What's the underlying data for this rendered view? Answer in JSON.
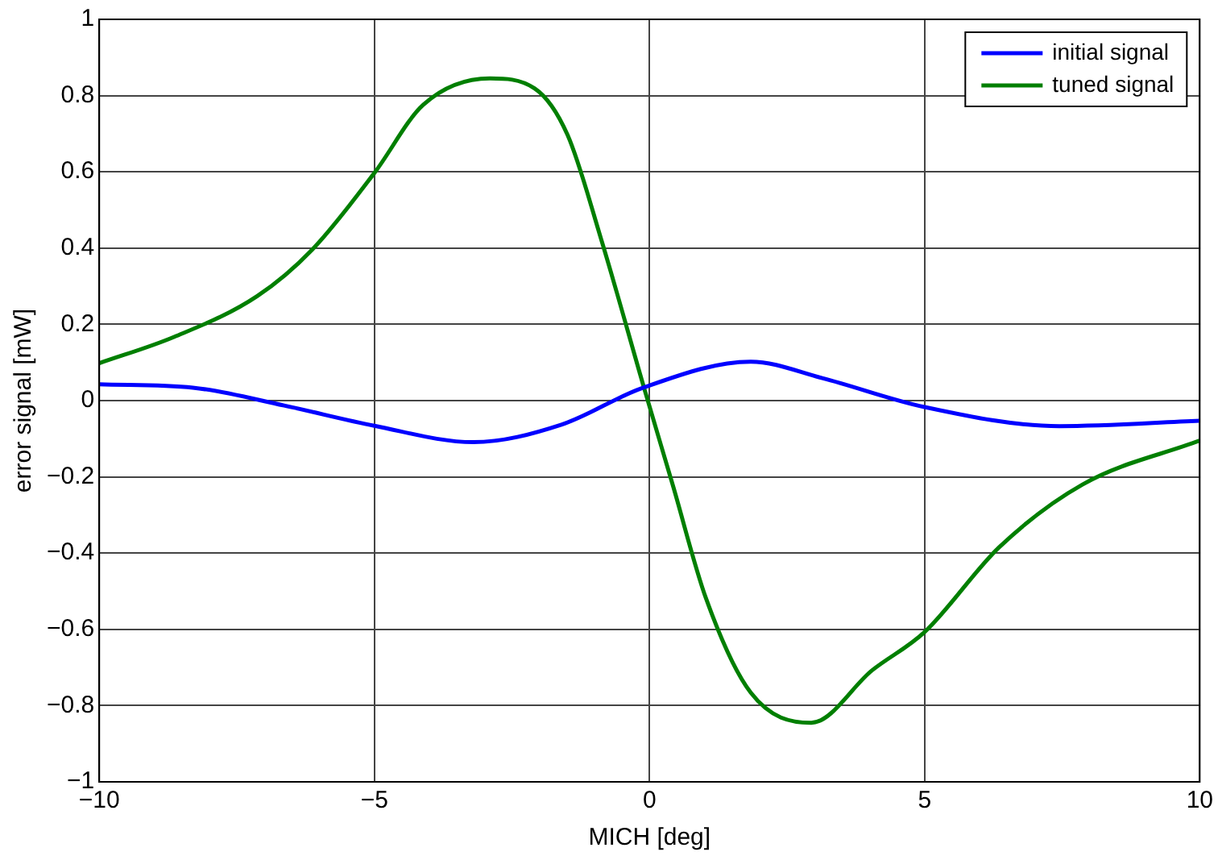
{
  "chart_data": {
    "type": "line",
    "xlabel": "MICH [deg]",
    "ylabel": "error signal [mW]",
    "xlim": [
      -10,
      10
    ],
    "xticks": [
      -10,
      -5,
      0,
      5,
      10
    ],
    "ylim": [
      -1,
      1
    ],
    "yticks": [
      -1,
      -0.8,
      -0.6,
      -0.4,
      -0.2,
      0,
      0.2,
      0.4,
      0.6,
      0.8,
      1
    ],
    "grid": true,
    "legend": "top right",
    "marker": "none",
    "line_style": "solid",
    "series": [
      {
        "name": "initial signal",
        "color": "#0000ff",
        "x": [
          -10,
          -8.3,
          -6.64,
          -5,
          -3.2,
          -1.6,
          -0.13,
          1.84,
          3.14,
          5,
          7.45,
          10
        ],
        "values": [
          0.043,
          0.034,
          -0.013,
          -0.066,
          -0.109,
          -0.063,
          0.033,
          0.102,
          0.059,
          -0.017,
          -0.067,
          -0.053
        ]
      },
      {
        "name": "tuned signal",
        "color": "#007f00",
        "x": [
          -10,
          -8.64,
          -7.13,
          -6.13,
          -5,
          -4.11,
          -2.9,
          -2.09,
          -1.49,
          -0.88,
          -0.08,
          0.42,
          1.03,
          1.84,
          2.94,
          4.05,
          5,
          6.36,
          7.87,
          10
        ],
        "values": [
          0.098,
          0.167,
          0.274,
          0.396,
          0.597,
          0.776,
          0.845,
          0.819,
          0.697,
          0.424,
          0.024,
          -0.22,
          -0.52,
          -0.766,
          -0.845,
          -0.707,
          -0.607,
          -0.384,
          -0.22,
          -0.105
        ]
      }
    ]
  }
}
